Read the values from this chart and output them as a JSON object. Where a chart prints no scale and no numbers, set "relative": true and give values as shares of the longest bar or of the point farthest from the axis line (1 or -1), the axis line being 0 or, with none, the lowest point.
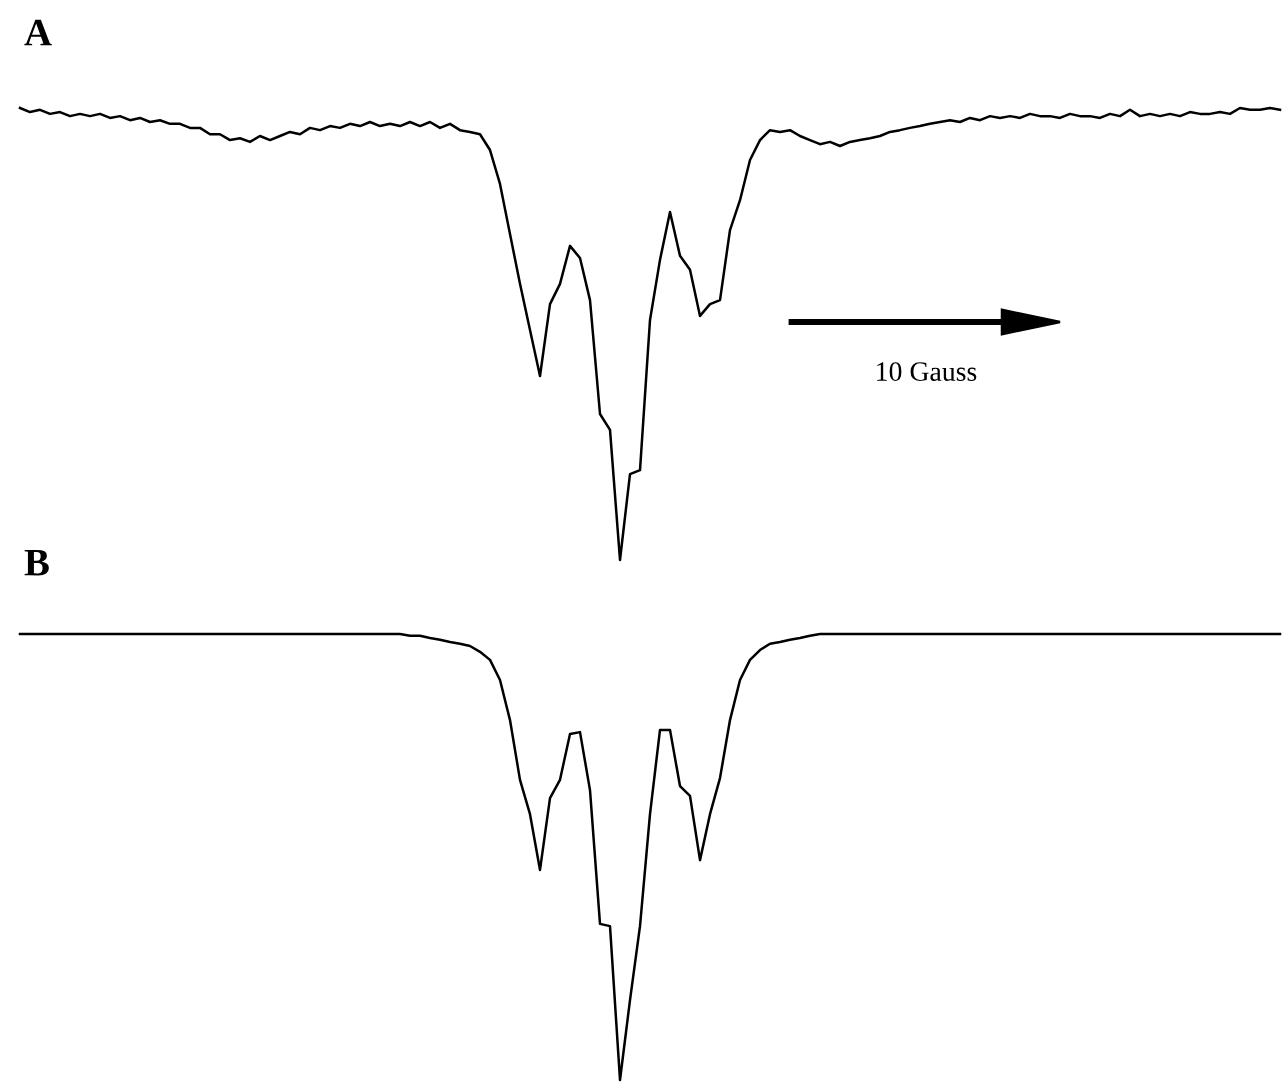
{
  "chart_data": [
    {
      "type": "line",
      "title": "A",
      "relative": true,
      "annotations": [
        "10 Gauss"
      ],
      "categories": [
        null,
        null,
        null,
        null,
        null,
        null,
        null,
        null,
        null,
        null,
        null,
        null,
        null,
        null,
        null,
        null,
        null,
        null,
        null,
        null,
        null,
        null,
        null,
        null,
        null,
        null,
        null,
        null,
        null,
        null,
        null,
        null,
        null,
        null,
        null,
        null,
        null,
        null,
        null,
        null,
        null,
        null,
        null,
        null,
        null,
        null,
        null,
        null,
        null,
        null,
        null,
        null,
        null,
        null,
        null,
        null,
        null,
        null,
        null,
        null,
        null,
        null,
        null,
        null,
        null,
        null,
        null,
        null,
        null,
        null,
        null,
        null,
        null,
        null,
        null,
        null,
        null,
        null,
        null,
        null,
        null,
        null,
        null,
        null,
        null,
        null,
        null,
        null,
        null,
        null,
        null,
        null,
        null,
        null,
        null,
        null,
        null,
        null,
        null,
        null,
        null,
        null,
        null,
        null,
        null,
        null,
        null,
        null,
        null,
        null,
        null,
        null,
        null,
        null,
        null,
        null,
        null,
        null,
        null,
        null,
        null,
        null,
        null,
        null,
        null,
        null,
        null
      ],
      "series": [
        {
          "color": "#000000",
          "values": [
            1.0,
            0.991,
            0.996,
            0.987,
            0.991,
            0.982,
            0.987,
            0.982,
            0.987,
            0.978,
            0.982,
            0.973,
            0.978,
            0.969,
            0.973,
            0.965,
            0.965,
            0.956,
            0.956,
            0.942,
            0.942,
            0.929,
            0.933,
            0.925,
            0.938,
            0.929,
            0.938,
            0.947,
            0.942,
            0.956,
            0.951,
            0.96,
            0.956,
            0.965,
            0.96,
            0.969,
            0.96,
            0.965,
            0.96,
            0.969,
            0.96,
            0.969,
            0.956,
            0.965,
            0.951,
            0.947,
            0.942,
            0.907,
            0.832,
            0.721,
            0.611,
            0.509,
            0.407,
            0.566,
            0.611,
            0.695,
            0.668,
            0.575,
            0.323,
            0.288,
            0.0,
            0.19,
            0.199,
            0.531,
            0.664,
            0.77,
            0.673,
            0.642,
            0.54,
            0.566,
            0.575,
            0.73,
            0.796,
            0.885,
            0.929,
            0.951,
            0.947,
            0.951,
            0.938,
            0.929,
            0.92,
            0.925,
            0.916,
            0.925,
            0.929,
            0.933,
            0.938,
            0.947,
            0.951,
            0.956,
            0.96,
            0.965,
            0.969,
            0.973,
            0.969,
            0.978,
            0.973,
            0.982,
            0.978,
            0.982,
            0.978,
            0.987,
            0.982,
            0.982,
            0.978,
            0.987,
            0.982,
            0.982,
            0.978,
            0.987,
            0.982,
            0.996,
            0.982,
            0.987,
            0.982,
            0.987,
            0.982,
            0.991,
            0.987,
            0.987,
            0.991,
            0.987,
            1.0,
            0.996,
            0.996,
            1.0,
            0.996
          ]
        }
      ]
    },
    {
      "type": "line",
      "title": "B",
      "relative": true,
      "categories": [
        null,
        null,
        null,
        null,
        null,
        null,
        null,
        null,
        null,
        null,
        null,
        null,
        null,
        null,
        null,
        null,
        null,
        null,
        null,
        null,
        null,
        null,
        null,
        null,
        null,
        null,
        null,
        null,
        null,
        null,
        null,
        null,
        null,
        null,
        null,
        null,
        null,
        null,
        null,
        null,
        null,
        null,
        null,
        null,
        null,
        null,
        null,
        null,
        null,
        null,
        null,
        null,
        null,
        null,
        null,
        null,
        null,
        null,
        null,
        null,
        null,
        null,
        null,
        null,
        null,
        null,
        null,
        null,
        null,
        null,
        null,
        null,
        null,
        null,
        null,
        null,
        null,
        null,
        null,
        null,
        null,
        null,
        null,
        null,
        null,
        null,
        null,
        null,
        null,
        null,
        null,
        null,
        null,
        null,
        null,
        null,
        null,
        null,
        null,
        null,
        null,
        null,
        null,
        null,
        null,
        null,
        null,
        null,
        null,
        null,
        null,
        null,
        null,
        null,
        null,
        null,
        null,
        null,
        null,
        null,
        null,
        null,
        null,
        null,
        null,
        null,
        null
      ],
      "series": [
        {
          "color": "#000000",
          "values": [
            1,
            1,
            1,
            1,
            1,
            1,
            1,
            1,
            1,
            1,
            1,
            1,
            1,
            1,
            1,
            1,
            1,
            1,
            1,
            1,
            1,
            1,
            1,
            1,
            1,
            1,
            1,
            1,
            1,
            1,
            1,
            1,
            1,
            1,
            1,
            1,
            1,
            1,
            1,
            0.996,
            0.996,
            0.991,
            0.987,
            0.982,
            0.978,
            0.973,
            0.96,
            0.942,
            0.897,
            0.807,
            0.673,
            0.596,
            0.471,
            0.632,
            0.673,
            0.776,
            0.78,
            0.65,
            0.35,
            0.345,
            0.0,
            0.179,
            0.345,
            0.596,
            0.785,
            0.785,
            0.659,
            0.637,
            0.493,
            0.596,
            0.677,
            0.807,
            0.897,
            0.942,
            0.964,
            0.978,
            0.982,
            0.987,
            0.991,
            0.996,
            1,
            1,
            1,
            1,
            1,
            1,
            1,
            1,
            1,
            1,
            1,
            1,
            1,
            1,
            1,
            1,
            1,
            1,
            1,
            1,
            1,
            1,
            1,
            1,
            1,
            1,
            1,
            1,
            1,
            1,
            1,
            1,
            1,
            1,
            1,
            1,
            1,
            1,
            1,
            1,
            1,
            1,
            1,
            1,
            1,
            1,
            1
          ]
        }
      ]
    }
  ]
}
